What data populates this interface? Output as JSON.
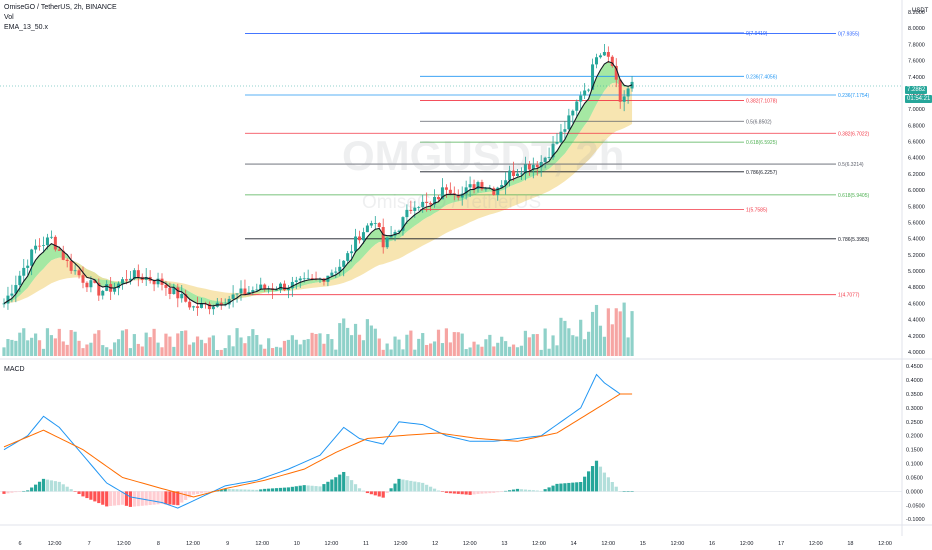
{
  "header": {
    "symbol_line": "OmiseGO / TetherUS, 2h, BINANCE",
    "vol_label": "Vol",
    "ema_label": "EMA_13_50.x"
  },
  "watermark": {
    "symbol": "OMGUSDT, 2h",
    "name": "OmiseGO / TetherUS"
  },
  "price_axis": {
    "currency": "USDT",
    "ticks": [
      "8.2000",
      "8.0000",
      "7.8000",
      "7.6000",
      "7.4000",
      "7.2000",
      "7.0000",
      "6.8000",
      "6.6000",
      "6.4000",
      "6.2000",
      "6.0000",
      "5.8000",
      "5.6000",
      "5.4000",
      "5.2000",
      "5.0000",
      "4.8000",
      "4.6000",
      "4.4000",
      "4.2000",
      "4.0000"
    ],
    "last_price": "7.2862",
    "countdown": "01:54:21"
  },
  "macd_panel": {
    "title": "MACD",
    "ticks": [
      "0.4500",
      "0.4000",
      "0.3500",
      "0.3000",
      "0.2500",
      "0.2000",
      "0.1500",
      "0.1000",
      "0.0500",
      "0.0000",
      "-0.0500",
      "-0.1000"
    ]
  },
  "time_axis": {
    "labels": [
      "6",
      "12:00",
      "7",
      "12:00",
      "8",
      "12:00",
      "9",
      "12:00",
      "10",
      "12:00",
      "11",
      "12:00",
      "12",
      "12:00",
      "13",
      "12:00",
      "14",
      "12:00",
      "15",
      "12:00",
      "16",
      "12:00",
      "17",
      "12:00",
      "18",
      "12:00"
    ]
  },
  "fib_sets": [
    {
      "name": "fib-a",
      "levels": [
        {
          "label": "0(7.9355)",
          "value": 7.9355,
          "color": "#2962ff"
        },
        {
          "label": "0.236(7.1754)",
          "value": 7.1754,
          "color": "#2196f3"
        },
        {
          "label": "0.382(6.7022)",
          "value": 6.7022,
          "color": "#f23645"
        },
        {
          "label": "0.5(6.3214)",
          "value": 6.3214,
          "color": "#5d606b"
        },
        {
          "label": "0.618(5.9405)",
          "value": 5.9405,
          "color": "#4caf50"
        },
        {
          "label": "0.786(5.3983)",
          "value": 5.3983,
          "color": "#131722"
        },
        {
          "label": "1(4.7077)",
          "value": 4.7077,
          "color": "#f23645"
        }
      ]
    },
    {
      "name": "fib-b",
      "levels": [
        {
          "label": "0(7.9419)",
          "value": 7.9419,
          "color": "#2962ff"
        },
        {
          "label": "0.236(7.4056)",
          "value": 7.4056,
          "color": "#2196f3"
        },
        {
          "label": "0.382(7.1078)",
          "value": 7.1078,
          "color": "#f23645"
        },
        {
          "label": "0.5(6.8502)",
          "value": 6.8502,
          "color": "#5d606b"
        },
        {
          "label": "0.618(6.5925)",
          "value": 6.5925,
          "color": "#4caf50"
        },
        {
          "label": "0.786(6.2257)",
          "value": 6.2257,
          "color": "#131722"
        },
        {
          "label": "1(5.7585)",
          "value": 5.7585,
          "color": "#f23645"
        }
      ]
    }
  ],
  "colors": {
    "up": "#26a69a",
    "down": "#ef5350",
    "vol_up": "#8fd1c9",
    "vol_down": "#f6a5a3",
    "macd_line": "#2196f3",
    "signal_line": "#ff6d00",
    "hist_up_strong": "#26a69a",
    "hist_up_weak": "#b2dfdb",
    "hist_down_strong": "#ff5252",
    "hist_down_weak": "#ffcdd2",
    "ema_fast": "#131722",
    "band_green": "#8ee28c",
    "band_yellow": "#f5de9e"
  },
  "chart_data": {
    "type": "candlestick",
    "title": "OmiseGO / TetherUS, 2h, BINANCE",
    "price_range": [
      3.95,
      8.25
    ],
    "macd_range": [
      -0.11,
      0.465
    ],
    "anchors": [
      [
        0,
        4.6
      ],
      [
        4,
        4.95
      ],
      [
        8,
        5.3
      ],
      [
        12,
        5.4
      ],
      [
        16,
        5.1
      ],
      [
        20,
        4.9
      ],
      [
        24,
        4.75
      ],
      [
        28,
        4.8
      ],
      [
        32,
        4.95
      ],
      [
        36,
        4.92
      ],
      [
        40,
        4.85
      ],
      [
        44,
        4.7
      ],
      [
        48,
        4.55
      ],
      [
        52,
        4.58
      ],
      [
        56,
        4.65
      ],
      [
        60,
        4.72
      ],
      [
        64,
        4.78
      ],
      [
        68,
        4.8
      ],
      [
        72,
        4.82
      ],
      [
        76,
        4.85
      ],
      [
        80,
        4.9
      ],
      [
        86,
        5.1
      ],
      [
        90,
        5.45
      ],
      [
        94,
        5.65
      ],
      [
        96,
        5.3
      ],
      [
        100,
        5.55
      ],
      [
        104,
        5.85
      ],
      [
        108,
        5.8
      ],
      [
        112,
        6.05
      ],
      [
        116,
        5.95
      ],
      [
        120,
        6.1
      ],
      [
        124,
        6.0
      ],
      [
        128,
        6.2
      ],
      [
        132,
        6.3
      ],
      [
        136,
        6.35
      ],
      [
        140,
        6.6
      ],
      [
        144,
        6.95
      ],
      [
        146,
        7.2
      ],
      [
        148,
        7.3
      ],
      [
        150,
        7.7
      ],
      [
        152,
        7.75
      ],
      [
        154,
        7.6
      ],
      [
        156,
        7.1
      ],
      [
        158,
        7.25
      ],
      [
        159,
        7.28
      ]
    ],
    "macd_anchors": [
      [
        0,
        0.15
      ],
      [
        6,
        0.2
      ],
      [
        10,
        0.27
      ],
      [
        14,
        0.23
      ],
      [
        20,
        0.13
      ],
      [
        26,
        0.03
      ],
      [
        32,
        -0.02
      ],
      [
        40,
        -0.04
      ],
      [
        44,
        -0.06
      ],
      [
        50,
        -0.02
      ],
      [
        56,
        0.02
      ],
      [
        64,
        0.04
      ],
      [
        72,
        0.08
      ],
      [
        80,
        0.13
      ],
      [
        86,
        0.23
      ],
      [
        90,
        0.19
      ],
      [
        96,
        0.17
      ],
      [
        100,
        0.25
      ],
      [
        106,
        0.24
      ],
      [
        112,
        0.2
      ],
      [
        118,
        0.18
      ],
      [
        124,
        0.18
      ],
      [
        130,
        0.19
      ],
      [
        136,
        0.2
      ],
      [
        140,
        0.24
      ],
      [
        146,
        0.3
      ],
      [
        150,
        0.42
      ],
      [
        152,
        0.39
      ],
      [
        156,
        0.35
      ]
    ],
    "signal_anchors": [
      [
        0,
        0.16
      ],
      [
        10,
        0.22
      ],
      [
        20,
        0.15
      ],
      [
        30,
        0.05
      ],
      [
        40,
        0.01
      ],
      [
        48,
        -0.02
      ],
      [
        56,
        0.01
      ],
      [
        66,
        0.04
      ],
      [
        76,
        0.08
      ],
      [
        84,
        0.14
      ],
      [
        92,
        0.19
      ],
      [
        100,
        0.2
      ],
      [
        110,
        0.21
      ],
      [
        120,
        0.19
      ],
      [
        130,
        0.18
      ],
      [
        140,
        0.21
      ],
      [
        148,
        0.28
      ],
      [
        156,
        0.35
      ]
    ],
    "volume_range": [
      0,
      1
    ]
  }
}
